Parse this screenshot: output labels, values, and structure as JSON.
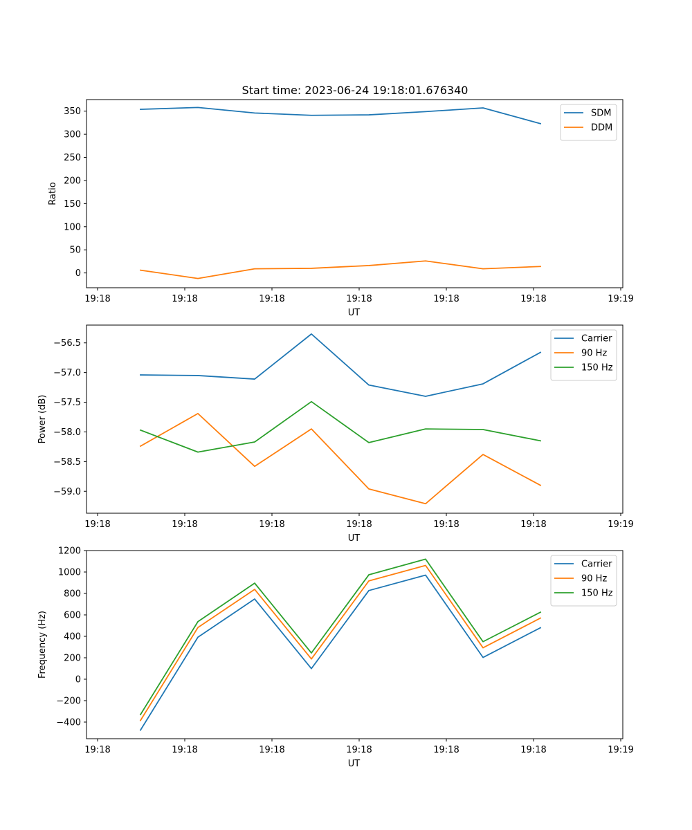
{
  "title": "Start time: 2023-06-24 19:18:01.676340",
  "chart_data": [
    {
      "type": "line",
      "xlabel": "UT",
      "ylabel": "Ratio",
      "xlim": [
        19.18,
        19.19
      ],
      "ylim": [
        -32,
        375
      ],
      "x": [
        "19:18",
        "19:18",
        "19:18",
        "19:18",
        "19:18",
        "19:18",
        "19:18",
        "19:18"
      ],
      "xticks": [
        "19:18",
        "19:18",
        "19:18",
        "19:18",
        "19:18",
        "19:18",
        "19:19"
      ],
      "yticks": [
        0,
        50,
        100,
        150,
        200,
        250,
        300,
        350
      ],
      "legend": "top-right",
      "series": [
        {
          "name": "SDM",
          "color": "#1f77b4",
          "values": [
            354,
            358,
            346,
            341,
            342,
            349,
            357,
            323
          ]
        },
        {
          "name": "DDM",
          "color": "#ff7f0e",
          "values": [
            6,
            -12,
            9,
            10,
            16,
            26,
            9,
            14
          ]
        }
      ]
    },
    {
      "type": "line",
      "xlabel": "UT",
      "ylabel": "Power (dB)",
      "ylim": [
        -59.37,
        -56.2
      ],
      "x": [
        "19:18",
        "19:18",
        "19:18",
        "19:18",
        "19:18",
        "19:18",
        "19:18",
        "19:18"
      ],
      "xticks": [
        "19:18",
        "19:18",
        "19:18",
        "19:18",
        "19:18",
        "19:18",
        "19:19"
      ],
      "yticks": [
        -56.5,
        -57.0,
        -57.5,
        -58.0,
        -58.5,
        -59.0
      ],
      "legend": "top-right",
      "series": [
        {
          "name": "Carrier",
          "color": "#1f77b4",
          "values": [
            -57.04,
            -57.05,
            -57.11,
            -56.35,
            -57.21,
            -57.4,
            -57.19,
            -56.66
          ]
        },
        {
          "name": "90 Hz",
          "color": "#ff7f0e",
          "values": [
            -58.24,
            -57.69,
            -58.58,
            -57.95,
            -58.96,
            -59.21,
            -58.38,
            -58.9
          ]
        },
        {
          "name": "150 Hz",
          "color": "#2ca02c",
          "values": [
            -57.97,
            -58.34,
            -58.17,
            -57.49,
            -58.18,
            -57.95,
            -57.96,
            -58.15
          ]
        }
      ]
    },
    {
      "type": "line",
      "xlabel": "UT",
      "ylabel": "Frequency (Hz)",
      "ylim": [
        -555,
        1200
      ],
      "x": [
        "19:18",
        "19:18",
        "19:18",
        "19:18",
        "19:18",
        "19:18",
        "19:18",
        "19:18"
      ],
      "xticks": [
        "19:18",
        "19:18",
        "19:18",
        "19:18",
        "19:18",
        "19:18",
        "19:19"
      ],
      "yticks": [
        -400,
        -200,
        0,
        200,
        400,
        600,
        800,
        1000,
        1200
      ],
      "legend": "top-right",
      "series": [
        {
          "name": "Carrier",
          "color": "#1f77b4",
          "values": [
            -475,
            392,
            748,
            99,
            827,
            971,
            203,
            480
          ]
        },
        {
          "name": "90 Hz",
          "color": "#ff7f0e",
          "values": [
            -385,
            482,
            838,
            189,
            917,
            1061,
            293,
            570
          ]
        },
        {
          "name": "150 Hz",
          "color": "#2ca02c",
          "values": [
            -330,
            537,
            896,
            245,
            974,
            1120,
            350,
            625
          ]
        }
      ]
    }
  ]
}
